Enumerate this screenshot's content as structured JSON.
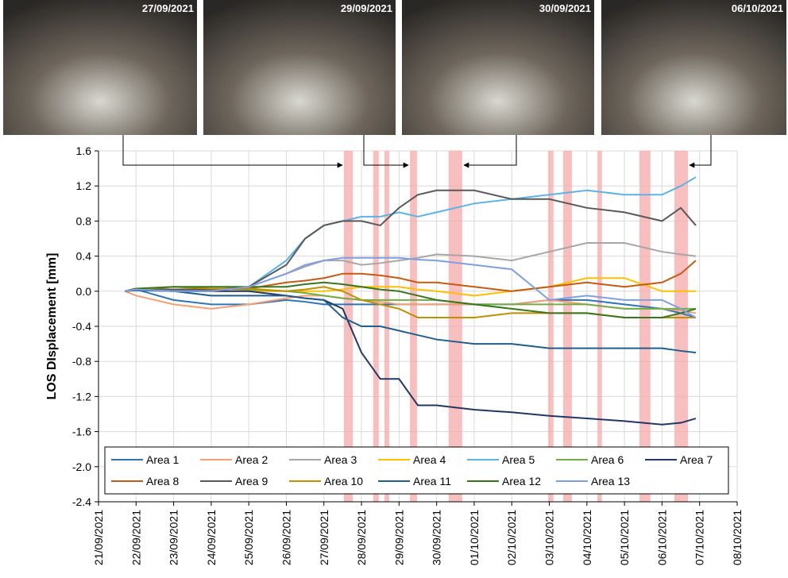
{
  "photos": [
    {
      "date": "27/09/2021"
    },
    {
      "date": "29/09/2021"
    },
    {
      "date": "30/09/2021"
    },
    {
      "date": "06/10/2021"
    }
  ],
  "chart_data": {
    "type": "line",
    "y_label": "LOS DIsplacement [mm]",
    "x": [
      0.7,
      1,
      2,
      3,
      4,
      5,
      5.5,
      6,
      6.5,
      7,
      7.5,
      8,
      8.5,
      9,
      10,
      11,
      12,
      13,
      14,
      15,
      15.5,
      15.9
    ],
    "xlim": [
      0,
      17
    ],
    "xticks": [
      {
        "value": 0,
        "label": "21/09/2021"
      },
      {
        "value": 1,
        "label": "22/09/2021"
      },
      {
        "value": 2,
        "label": "23/09/2021"
      },
      {
        "value": 3,
        "label": "24/09/2021"
      },
      {
        "value": 4,
        "label": "25/09/2021"
      },
      {
        "value": 5,
        "label": "26/09/2021"
      },
      {
        "value": 6,
        "label": "27/09/2021"
      },
      {
        "value": 7,
        "label": "28/09/2021"
      },
      {
        "value": 8,
        "label": "29/09/2021"
      },
      {
        "value": 9,
        "label": "30/09/2021"
      },
      {
        "value": 10,
        "label": "01/10/2021"
      },
      {
        "value": 11,
        "label": "02/10/2021"
      },
      {
        "value": 12,
        "label": "03/10/2021"
      },
      {
        "value": 13,
        "label": "04/10/2021"
      },
      {
        "value": 14,
        "label": "05/10/2021"
      },
      {
        "value": 15,
        "label": "06/10/2021"
      },
      {
        "value": 16,
        "label": "07/10/2021"
      },
      {
        "value": 17,
        "label": "08/10/2021"
      }
    ],
    "ylim": [
      -2.4,
      1.6
    ],
    "yticks": [
      {
        "value": -2.4,
        "label": "-2.4"
      },
      {
        "value": -2,
        "label": "-2.0"
      },
      {
        "value": -1.6,
        "label": "-1.6"
      },
      {
        "value": -1.2,
        "label": "-1.2"
      },
      {
        "value": -0.8,
        "label": "-0.8"
      },
      {
        "value": -0.4,
        "label": "-0.4"
      },
      {
        "value": 0,
        "label": "0.0"
      },
      {
        "value": 0.4,
        "label": "0.4"
      },
      {
        "value": 0.8,
        "label": "0.8"
      },
      {
        "value": 1.2,
        "label": "1.2"
      },
      {
        "value": 1.6,
        "label": "1.6"
      }
    ],
    "grid": true,
    "shade_color": "#f7a8a8",
    "shaded_periods": [
      [
        6.53,
        6.77
      ],
      [
        7.31,
        7.46
      ],
      [
        7.61,
        7.74
      ],
      [
        8.29,
        8.48
      ],
      [
        9.32,
        9.68
      ],
      [
        11.97,
        12.11
      ],
      [
        12.37,
        12.6
      ],
      [
        13.28,
        13.4
      ],
      [
        14.4,
        14.69
      ],
      [
        15.33,
        15.69
      ]
    ],
    "series": [
      {
        "name": "Area 1",
        "color": "#2e75b6",
        "values": [
          0,
          0.02,
          -0.1,
          -0.15,
          -0.15,
          -0.1,
          -0.12,
          -0.15,
          -0.15,
          -0.15,
          -0.15,
          -0.15,
          -0.15,
          -0.15,
          -0.15,
          -0.15,
          -0.1,
          -0.1,
          -0.15,
          -0.2,
          -0.25,
          -0.3
        ]
      },
      {
        "name": "Area 2",
        "color": "#f4a070",
        "values": [
          0,
          -0.05,
          -0.15,
          -0.2,
          -0.15,
          -0.08,
          -0.05,
          -0.05,
          -0.08,
          -0.1,
          -0.12,
          -0.15,
          -0.15,
          -0.15,
          -0.15,
          -0.15,
          -0.1,
          -0.15,
          -0.2,
          -0.2,
          -0.22,
          -0.25
        ]
      },
      {
        "name": "Area 3",
        "color": "#a6a6a6",
        "values": [
          0,
          0.02,
          0,
          0,
          0.05,
          0.2,
          0.28,
          0.35,
          0.35,
          0.3,
          0.32,
          0.35,
          0.38,
          0.42,
          0.4,
          0.35,
          0.45,
          0.55,
          0.55,
          0.45,
          0.42,
          0.4
        ]
      },
      {
        "name": "Area 4",
        "color": "#ffc000",
        "values": [
          0,
          0.02,
          0.02,
          0,
          0,
          0,
          0,
          0,
          0.02,
          0.05,
          0.05,
          0.05,
          0.02,
          0,
          -0.05,
          0,
          0.05,
          0.15,
          0.15,
          0,
          0,
          0
        ]
      },
      {
        "name": "Area 5",
        "color": "#5bb4e5",
        "values": [
          0,
          0.02,
          0,
          0,
          0.05,
          0.35,
          0.6,
          0.75,
          0.8,
          0.85,
          0.85,
          0.9,
          0.85,
          0.9,
          1.0,
          1.05,
          1.1,
          1.15,
          1.1,
          1.1,
          1.2,
          1.3
        ]
      },
      {
        "name": "Area 6",
        "color": "#70ad47",
        "values": [
          0,
          0.02,
          0.02,
          0.03,
          0.02,
          0,
          -0.02,
          -0.05,
          -0.08,
          -0.1,
          -0.1,
          -0.1,
          -0.1,
          -0.1,
          -0.15,
          -0.15,
          -0.15,
          -0.15,
          -0.2,
          -0.2,
          -0.2,
          -0.2
        ]
      },
      {
        "name": "Area 7",
        "color": "#203864",
        "values": [
          0,
          0.02,
          0,
          0,
          0,
          -0.05,
          -0.08,
          -0.1,
          -0.2,
          -0.7,
          -1.0,
          -1.0,
          -1.3,
          -1.3,
          -1.35,
          -1.38,
          -1.42,
          -1.45,
          -1.48,
          -1.52,
          -1.5,
          -1.45
        ]
      },
      {
        "name": "Area 8",
        "color": "#c55a11",
        "values": [
          0,
          0.03,
          0.02,
          0.02,
          0.03,
          0.1,
          0.12,
          0.15,
          0.2,
          0.2,
          0.18,
          0.15,
          0.1,
          0.1,
          0.05,
          0,
          0.05,
          0.1,
          0.05,
          0.1,
          0.2,
          0.35
        ]
      },
      {
        "name": "Area 9",
        "color": "#595959",
        "values": [
          0,
          0.03,
          0.02,
          0.02,
          0.05,
          0.3,
          0.6,
          0.75,
          0.8,
          0.8,
          0.75,
          0.95,
          1.1,
          1.15,
          1.15,
          1.05,
          1.05,
          0.95,
          0.9,
          0.8,
          0.95,
          0.75
        ]
      },
      {
        "name": "Area 10",
        "color": "#bf8f00",
        "values": [
          0,
          0.02,
          0.05,
          0.03,
          0.03,
          0,
          0.02,
          0.05,
          0,
          -0.1,
          -0.15,
          -0.2,
          -0.3,
          -0.3,
          -0.3,
          -0.25,
          -0.25,
          -0.25,
          -0.3,
          -0.3,
          -0.3,
          -0.3
        ]
      },
      {
        "name": "Area 11",
        "color": "#1f5f8b",
        "values": [
          0,
          0.01,
          0,
          -0.05,
          -0.05,
          -0.05,
          -0.08,
          -0.1,
          -0.3,
          -0.4,
          -0.4,
          -0.45,
          -0.5,
          -0.55,
          -0.6,
          -0.6,
          -0.65,
          -0.65,
          -0.65,
          -0.65,
          -0.68,
          -0.7
        ]
      },
      {
        "name": "Area 12",
        "color": "#38761d",
        "values": [
          0,
          0.03,
          0.05,
          0.05,
          0.05,
          0.05,
          0.08,
          0.1,
          0.08,
          0.05,
          0.02,
          0,
          -0.05,
          -0.1,
          -0.15,
          -0.2,
          -0.25,
          -0.25,
          -0.3,
          -0.3,
          -0.25,
          -0.2
        ]
      },
      {
        "name": "Area 13",
        "color": "#7e9fe0",
        "values": [
          0,
          0.02,
          0,
          0,
          0.05,
          0.2,
          0.3,
          0.35,
          0.38,
          0.38,
          0.38,
          0.38,
          0.36,
          0.35,
          0.3,
          0.25,
          -0.1,
          -0.05,
          -0.1,
          -0.1,
          -0.2,
          -0.3
        ]
      }
    ]
  }
}
